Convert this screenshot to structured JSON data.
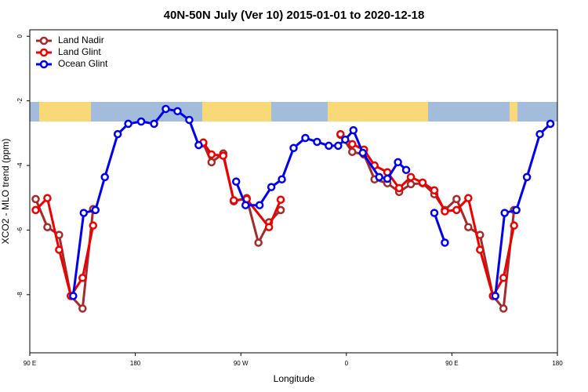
{
  "chart_data": {
    "type": "line",
    "title": "40N-50N July (Ver 10)   2015-01-01 to 2020-12-18",
    "x_label": "Longitude",
    "y_label": "XCO2 - MLO trend (ppm)",
    "xlim": [
      90,
      540
    ],
    "xticks": [
      {
        "value": 90,
        "label": "90 E"
      },
      {
        "value": 180,
        "label": "180"
      },
      {
        "value": 270,
        "label": "90 W"
      },
      {
        "value": 360,
        "label": "0"
      },
      {
        "value": 450,
        "label": "90 E"
      },
      {
        "value": 540,
        "label": "180"
      }
    ],
    "ylim": [
      -9.8,
      0.2
    ],
    "yticks": [
      0,
      -2,
      -4,
      -6,
      -8
    ],
    "legend": "top-left",
    "series": [
      {
        "name": "Land Nadir",
        "color": "#a52a2a",
        "x": [
          95,
          105,
          115,
          125,
          135,
          144,
          null,
          238,
          245,
          255,
          264,
          275,
          285,
          294,
          304,
          null,
          355,
          365,
          375,
          384,
          395,
          405,
          415,
          425,
          435,
          444,
          454,
          464,
          474,
          485,
          494,
          503
        ],
        "values": [
          -5.04,
          -5.91,
          -6.15,
          -8.04,
          -8.43,
          -5.35,
          null,
          -3.32,
          -3.9,
          -3.63,
          -5.11,
          -5.01,
          -6.39,
          -5.76,
          -5.38,
          null,
          -3.05,
          -3.58,
          -3.66,
          -4.43,
          -4.55,
          -4.82,
          -4.58,
          -4.55,
          -4.89,
          -5.38,
          -5.04,
          -5.91,
          -6.15,
          -8.04,
          -8.43,
          -5.38
        ]
      },
      {
        "name": "Land Glint",
        "color": "#ee0000",
        "x": [
          95,
          105,
          115,
          125,
          135,
          144,
          null,
          238,
          245,
          255,
          264,
          275,
          294,
          304,
          null,
          355,
          365,
          375,
          384,
          395,
          405,
          415,
          425,
          435,
          444,
          454,
          464,
          474,
          485,
          494,
          503
        ],
        "values": [
          -5.38,
          -5.01,
          -6.61,
          -8.04,
          -7.48,
          -5.86,
          null,
          -3.29,
          -3.66,
          -3.7,
          -5.08,
          -5.04,
          -5.91,
          -5.06,
          null,
          -3.03,
          -3.34,
          -3.51,
          -4.0,
          -4.21,
          -4.7,
          -4.36,
          -4.53,
          -4.77,
          -5.42,
          -5.38,
          -5.01,
          -6.61,
          -8.04,
          -7.48,
          -5.86
        ]
      },
      {
        "name": "Ocean Glint",
        "color": "#0000ee",
        "x": [
          127,
          136,
          146,
          154,
          165,
          174,
          185,
          196,
          206,
          216,
          226,
          234,
          null,
          266,
          274,
          286,
          296,
          305,
          315,
          325,
          335,
          345,
          353,
          359,
          366,
          374,
          388,
          395,
          404,
          411,
          null,
          435,
          444,
          null,
          487,
          495,
          505,
          514,
          525,
          534
        ],
        "values": [
          -8.04,
          -5.47,
          -5.38,
          -4.36,
          -3.03,
          -2.71,
          -2.64,
          -2.71,
          -2.25,
          -2.32,
          -2.59,
          -3.37,
          null,
          -4.5,
          -5.23,
          -5.23,
          -4.67,
          -4.43,
          -3.46,
          -3.15,
          -3.27,
          -3.39,
          -3.39,
          -3.2,
          -2.91,
          -3.61,
          -4.36,
          -4.41,
          -3.9,
          -4.14,
          null,
          -5.47,
          -6.39,
          null,
          -8.04,
          -5.47,
          -5.38,
          -4.36,
          -3.03,
          -2.71
        ]
      }
    ]
  }
}
